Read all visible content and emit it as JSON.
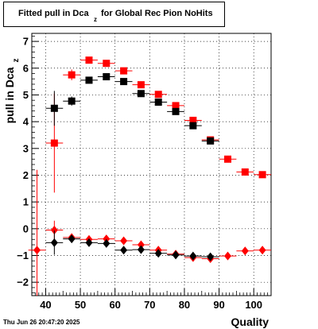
{
  "title": {
    "main": "Fitted pull in Dca",
    "subscript": "z",
    "tail": "for Global Rec Pion NoHits"
  },
  "footer": {
    "timestamp": "Thu Jun 26 20:47:20 2025"
  },
  "chart_data": {
    "type": "scatter",
    "xlabel": "Quality",
    "ylabel": "pull in Dca",
    "ylabel_subscript": "z",
    "xlim": [
      36,
      105
    ],
    "ylim": [
      -2.5,
      7.3
    ],
    "x_ticks": [
      40,
      50,
      60,
      70,
      80,
      90,
      100
    ],
    "y_ticks": [
      -2,
      -1,
      0,
      1,
      2,
      3,
      4,
      5,
      6,
      7
    ],
    "grid": true,
    "colors": {
      "red": "#ff0000",
      "black": "#000000"
    },
    "series": [
      {
        "marker": "square",
        "color": "#ff0000",
        "points": [
          {
            "x": 42.5,
            "y": 3.2,
            "yerr": 1.85
          },
          {
            "x": 47.5,
            "y": 5.75,
            "yerr": 0.2
          },
          {
            "x": 52.5,
            "y": 6.3,
            "yerr": 0.12
          },
          {
            "x": 57.5,
            "y": 6.18,
            "yerr": 0.08
          },
          {
            "x": 62.5,
            "y": 5.9,
            "yerr": 0.05
          },
          {
            "x": 67.5,
            "y": 5.38,
            "yerr": 0.04
          },
          {
            "x": 72.5,
            "y": 5.02,
            "yerr": 0.04
          },
          {
            "x": 77.5,
            "y": 4.6,
            "yerr": 0.04
          },
          {
            "x": 82.5,
            "y": 4.05,
            "yerr": 0.04
          },
          {
            "x": 87.5,
            "y": 3.32,
            "yerr": 0.04
          },
          {
            "x": 92.5,
            "y": 2.6,
            "yerr": 0.04
          },
          {
            "x": 97.5,
            "y": 2.12,
            "yerr": 0.04
          },
          {
            "x": 102.5,
            "y": 2.02,
            "yerr": 0.04
          }
        ]
      },
      {
        "marker": "square",
        "color": "#000000",
        "points": [
          {
            "x": 42.5,
            "y": 4.5,
            "yerr": 0.65
          },
          {
            "x": 47.5,
            "y": 4.77,
            "yerr": 0.17
          },
          {
            "x": 52.5,
            "y": 5.55,
            "yerr": 0.1
          },
          {
            "x": 57.5,
            "y": 5.68,
            "yerr": 0.07
          },
          {
            "x": 62.5,
            "y": 5.5,
            "yerr": 0.05
          },
          {
            "x": 67.5,
            "y": 5.05,
            "yerr": 0.04
          },
          {
            "x": 72.5,
            "y": 4.73,
            "yerr": 0.04
          },
          {
            "x": 77.5,
            "y": 4.38,
            "yerr": 0.04
          },
          {
            "x": 82.5,
            "y": 3.85,
            "yerr": 0.04
          },
          {
            "x": 87.5,
            "y": 3.28,
            "yerr": 0.04
          }
        ]
      },
      {
        "marker": "diamond",
        "color": "#ff0000",
        "points": [
          {
            "x": 37.5,
            "y": -0.8,
            "yerr": 3.0
          },
          {
            "x": 42.5,
            "y": -0.05,
            "yerr": 0.35
          },
          {
            "x": 47.5,
            "y": -0.33,
            "yerr": 0.12
          },
          {
            "x": 52.5,
            "y": -0.4,
            "yerr": 0.08
          },
          {
            "x": 57.5,
            "y": -0.38,
            "yerr": 0.06
          },
          {
            "x": 62.5,
            "y": -0.45,
            "yerr": 0.05
          },
          {
            "x": 67.5,
            "y": -0.6,
            "yerr": 0.05
          },
          {
            "x": 72.5,
            "y": -0.8,
            "yerr": 0.05
          },
          {
            "x": 77.5,
            "y": -0.95,
            "yerr": 0.05
          },
          {
            "x": 82.5,
            "y": -1.08,
            "yerr": 0.05
          },
          {
            "x": 87.5,
            "y": -1.12,
            "yerr": 0.05
          },
          {
            "x": 92.5,
            "y": -1.02,
            "yerr": 0.05
          },
          {
            "x": 97.5,
            "y": -0.83,
            "yerr": 0.05
          },
          {
            "x": 102.5,
            "y": -0.8,
            "yerr": 0.05
          }
        ]
      },
      {
        "marker": "diamond",
        "color": "#000000",
        "points": [
          {
            "x": 42.5,
            "y": -0.52,
            "yerr": 0.45
          },
          {
            "x": 47.5,
            "y": -0.38,
            "yerr": 0.12
          },
          {
            "x": 52.5,
            "y": -0.52,
            "yerr": 0.08
          },
          {
            "x": 57.5,
            "y": -0.55,
            "yerr": 0.06
          },
          {
            "x": 62.5,
            "y": -0.8,
            "yerr": 0.05
          },
          {
            "x": 67.5,
            "y": -0.78,
            "yerr": 0.05
          },
          {
            "x": 72.5,
            "y": -0.92,
            "yerr": 0.05
          },
          {
            "x": 77.5,
            "y": -0.98,
            "yerr": 0.05
          },
          {
            "x": 82.5,
            "y": -1.02,
            "yerr": 0.05
          },
          {
            "x": 87.5,
            "y": -1.05,
            "yerr": 0.05
          }
        ]
      }
    ]
  }
}
